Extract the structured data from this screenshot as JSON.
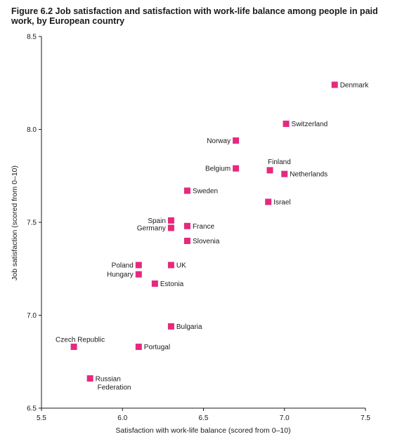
{
  "title": "Figure 6.2 Job satisfaction and satisfaction with work-life balance among people in paid work, by European country",
  "colors": {
    "marker": "#e6297e",
    "axis": "#1a1a1a"
  },
  "chart_data": {
    "type": "scatter",
    "xlabel": "Satisfaction with work-life balance (scored from 0–10)",
    "ylabel": "Job satisfaction (scored from 0–10)",
    "xlim": [
      5.5,
      7.5
    ],
    "ylim": [
      6.5,
      8.5
    ],
    "xticks": [
      "5.5",
      "6.0",
      "6.5",
      "7.0",
      "7.5"
    ],
    "yticks": [
      "6.5",
      "7.0",
      "7.5",
      "8.0",
      "8.5"
    ],
    "grid": false,
    "points": [
      {
        "label": "Denmark",
        "x": 7.31,
        "y": 8.24,
        "label_side": "right"
      },
      {
        "label": "Switzerland",
        "x": 7.01,
        "y": 8.03,
        "label_side": "right"
      },
      {
        "label": "Norway",
        "x": 6.7,
        "y": 7.94,
        "label_side": "left"
      },
      {
        "label": "Belgium",
        "x": 6.7,
        "y": 7.79,
        "label_side": "left"
      },
      {
        "label": "Finland",
        "x": 6.91,
        "y": 7.78,
        "label_side": "above"
      },
      {
        "label": "Netherlands",
        "x": 7.0,
        "y": 7.76,
        "label_side": "right"
      },
      {
        "label": "Sweden",
        "x": 6.4,
        "y": 7.67,
        "label_side": "right"
      },
      {
        "label": "Israel",
        "x": 6.9,
        "y": 7.61,
        "label_side": "right"
      },
      {
        "label": "Spain",
        "x": 6.3,
        "y": 7.51,
        "label_side": "left"
      },
      {
        "label": "Germany",
        "x": 6.3,
        "y": 7.47,
        "label_side": "left"
      },
      {
        "label": "France",
        "x": 6.4,
        "y": 7.48,
        "label_side": "right"
      },
      {
        "label": "Slovenia",
        "x": 6.4,
        "y": 7.4,
        "label_side": "right"
      },
      {
        "label": "Poland",
        "x": 6.1,
        "y": 7.27,
        "label_side": "left"
      },
      {
        "label": "UK",
        "x": 6.3,
        "y": 7.27,
        "label_side": "right"
      },
      {
        "label": "Hungary",
        "x": 6.1,
        "y": 7.22,
        "label_side": "left"
      },
      {
        "label": "Estonia",
        "x": 6.2,
        "y": 7.17,
        "label_side": "right"
      },
      {
        "label": "Bulgaria",
        "x": 6.3,
        "y": 6.94,
        "label_side": "right"
      },
      {
        "label": "Czech Republic",
        "x": 5.7,
        "y": 6.83,
        "label_side": "above-left"
      },
      {
        "label": "Portugal",
        "x": 6.1,
        "y": 6.83,
        "label_side": "right"
      },
      {
        "label": "Russian Federation",
        "x": 5.8,
        "y": 6.66,
        "label_side": "right-wrap",
        "label_lines": [
          "Russian",
          "Federation"
        ]
      }
    ]
  }
}
